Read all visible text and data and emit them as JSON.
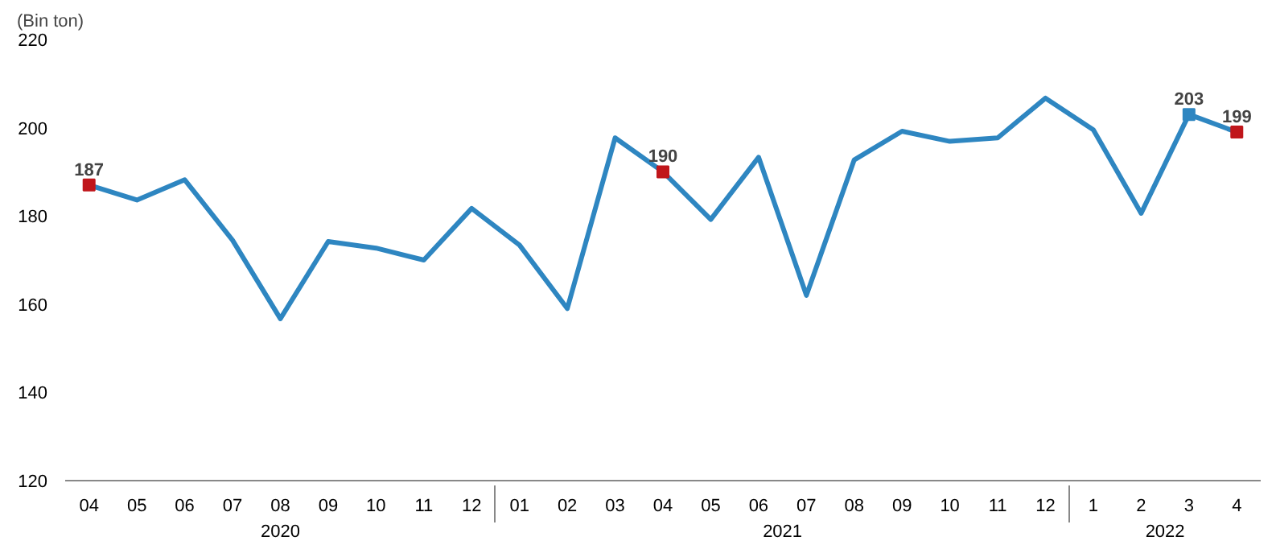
{
  "chart_data": {
    "type": "line",
    "ylabel": "(Bin ton)",
    "categories": [
      "04",
      "05",
      "06",
      "07",
      "08",
      "09",
      "10",
      "11",
      "12",
      "01",
      "02",
      "03",
      "04",
      "05",
      "06",
      "07",
      "08",
      "09",
      "10",
      "11",
      "12",
      "1",
      "2",
      "3",
      "4"
    ],
    "annotations": [
      "2020",
      "2021",
      "2022"
    ],
    "ylim": [
      120,
      220
    ],
    "yticks": [
      120,
      140,
      160,
      180,
      200,
      220
    ],
    "grid": false,
    "line_style": "solid",
    "series": [
      {
        "color": "#2e86c1",
        "marker": "none",
        "values": [
          187,
          183.6,
          188.2,
          174.5,
          156.7,
          174.2,
          172.7,
          170,
          181.7,
          173.4,
          159,
          197.7,
          190,
          179.2,
          193.3,
          162,
          192.7,
          199.2,
          196.9,
          197.7,
          206.7,
          199.5,
          180.6,
          203,
          199
        ]
      },
      {
        "type": "scatter",
        "marker": "square",
        "color": "#c0161b",
        "colors": [
          "#c0161b",
          null,
          null,
          null,
          null,
          null,
          null,
          null,
          null,
          null,
          null,
          null,
          "#c0161b",
          null,
          null,
          null,
          null,
          null,
          null,
          null,
          null,
          null,
          null,
          "#2e86c1",
          "#c0161b"
        ],
        "values": [
          187,
          null,
          null,
          null,
          null,
          null,
          null,
          null,
          null,
          null,
          null,
          null,
          190,
          null,
          null,
          null,
          null,
          null,
          null,
          null,
          null,
          null,
          null,
          203,
          199
        ],
        "value_labels": [
          "187",
          null,
          null,
          null,
          null,
          null,
          null,
          null,
          null,
          null,
          null,
          null,
          "190",
          null,
          null,
          null,
          null,
          null,
          null,
          null,
          null,
          null,
          null,
          "203",
          "199"
        ]
      }
    ]
  }
}
